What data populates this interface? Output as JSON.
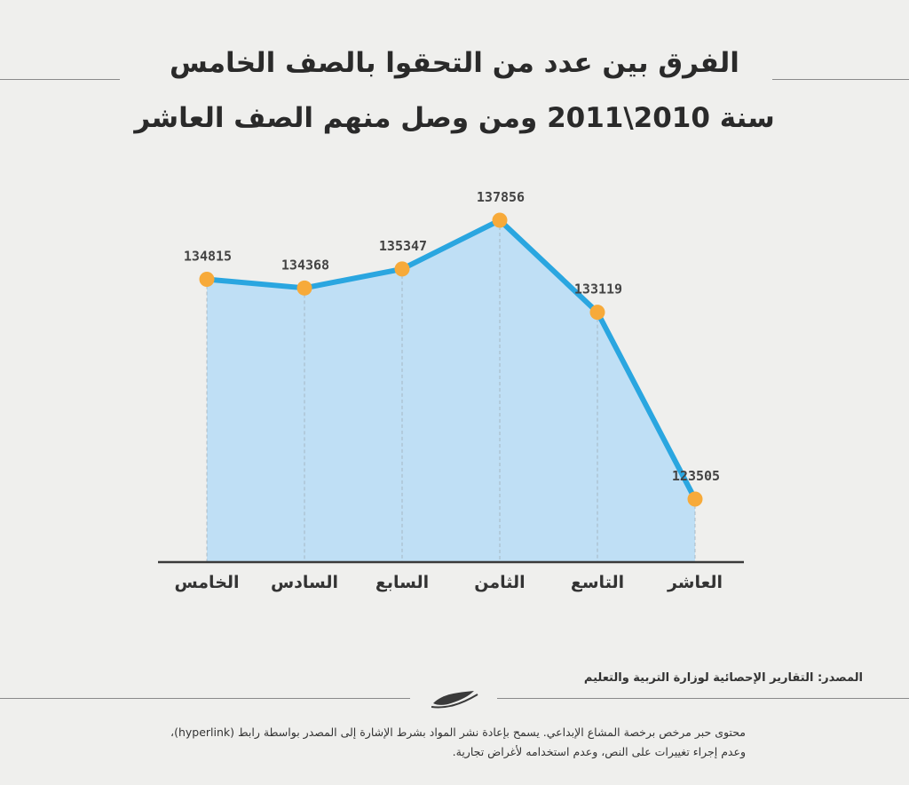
{
  "header": {
    "title_line1": "الفرق بين عدد من التحقوا بالصف الخامس",
    "title_line2": "سنة 2010\\2011 ومن وصل منهم الصف العاشر"
  },
  "chart_data": {
    "type": "area",
    "title": "الفرق بين عدد من التحقوا بالصف الخامس سنة 2010\\2011 ومن وصل منهم الصف العاشر",
    "categories": [
      "الخامس",
      "السادس",
      "السابع",
      "الثامن",
      "التاسع",
      "العاشر"
    ],
    "values": [
      134815,
      134368,
      135347,
      137856,
      133119,
      123505
    ],
    "xlabel": "",
    "ylabel": "",
    "grid": false,
    "colors": {
      "line": "#2aa6e0",
      "fill": "#bfdff5",
      "marker": "#f7aa3a",
      "axis": "#3a3a3a",
      "guide": "#9aa7b0"
    }
  },
  "footer": {
    "source": "المصدر: التقارير الإحصائية لوزارة التربية والتعليم",
    "license_line1": "محتوى حبر مرخص برخصة المشاع الإبداعي. يسمح بإعادة نشر المواد بشرط الإشارة إلى المصدر بواسطة رابط (hyperlink)،",
    "license_line2": "وعدم إجراء تغييرات على النص، وعدم استخدامه لأغراض تجارية.",
    "logo": "hibr-pen-logo"
  }
}
